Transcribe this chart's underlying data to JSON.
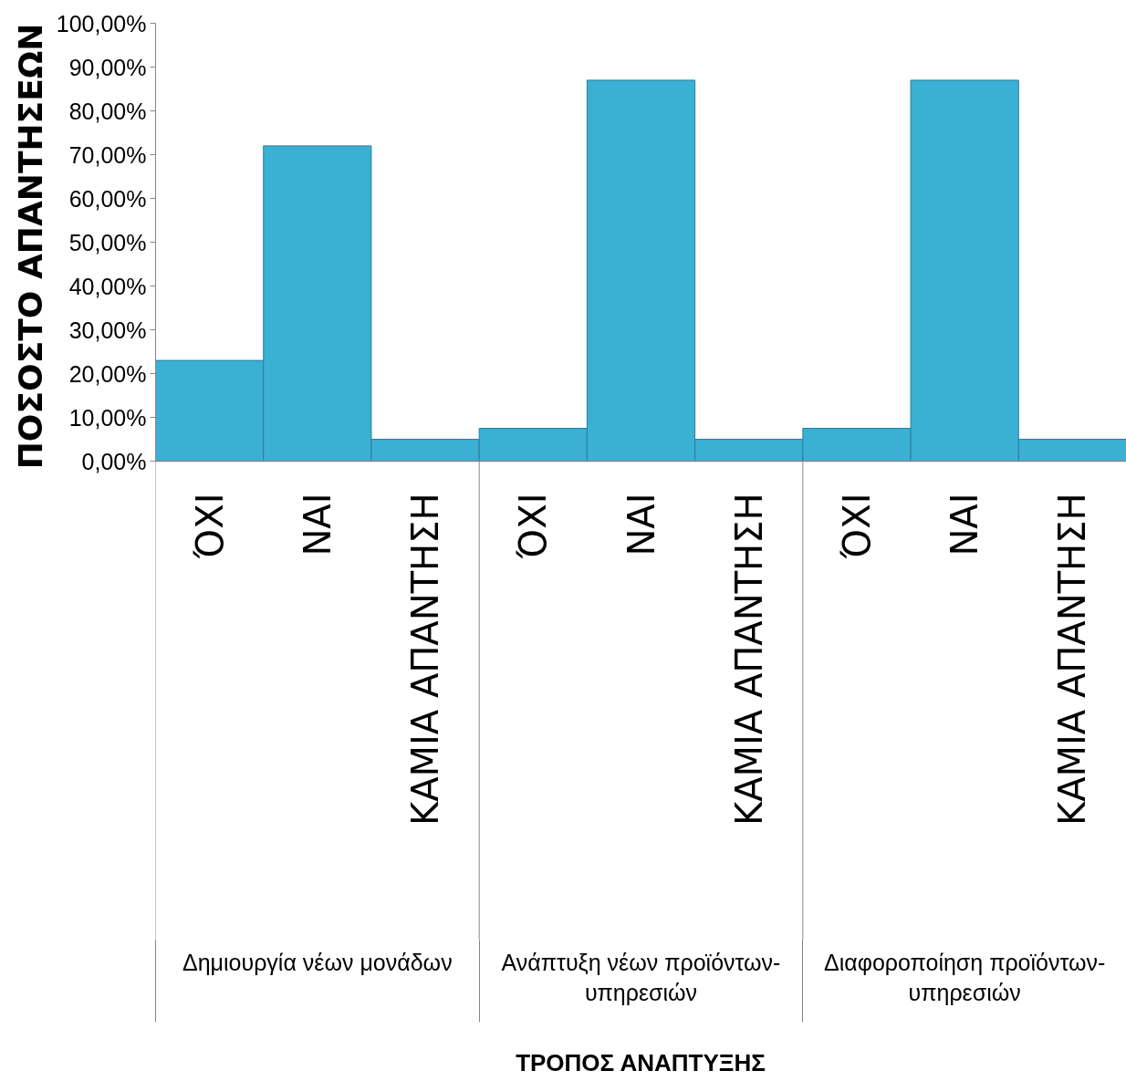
{
  "chart_data": {
    "type": "bar",
    "ylabel": "ΠΟΣΟΣΤΟ ΑΠΑΝΤΗΣΕΩΝ",
    "categories": [
      "ΌΧΙ",
      "ΝΑΙ",
      "ΚΑΜΙΑ ΑΠΑΝΤΗΣΗ",
      "ΌΧΙ",
      "ΝΑΙ",
      "ΚΑΜΙΑ ΑΠΑΝΤΗΣΗ",
      "ΌΧΙ",
      "ΝΑΙ",
      "ΚΑΜΙΑ ΑΠΑΝΤΗΣΗ"
    ],
    "values": [
      23,
      72,
      5,
      7.5,
      87,
      5,
      7.5,
      87,
      5
    ],
    "color": "#3ab0d4",
    "ylim": [
      0,
      100
    ],
    "yticks": [
      {
        "value": 0,
        "label": "0,00%"
      },
      {
        "value": 10,
        "label": "10,00%"
      },
      {
        "value": 20,
        "label": "20,00%"
      },
      {
        "value": 30,
        "label": "30,00%"
      },
      {
        "value": 40,
        "label": "40,00%"
      },
      {
        "value": 50,
        "label": "50,00%"
      },
      {
        "value": 60,
        "label": "60,00%"
      },
      {
        "value": 70,
        "label": "70,00%"
      },
      {
        "value": 80,
        "label": "80,00%"
      },
      {
        "value": 90,
        "label": "90,00%"
      },
      {
        "value": 100,
        "label": "100,00%"
      }
    ],
    "annotations": [
      "Δημιουργία νέων μονάδων",
      "Ανάπτυξη νέων προϊόντων-υπηρεσιών",
      "Διαφοροποίηση προϊόντων-υπηρεσιών",
      "ΤΡΟΠΟΣ ΑΝΑΠΤΥΞΗΣ"
    ]
  }
}
